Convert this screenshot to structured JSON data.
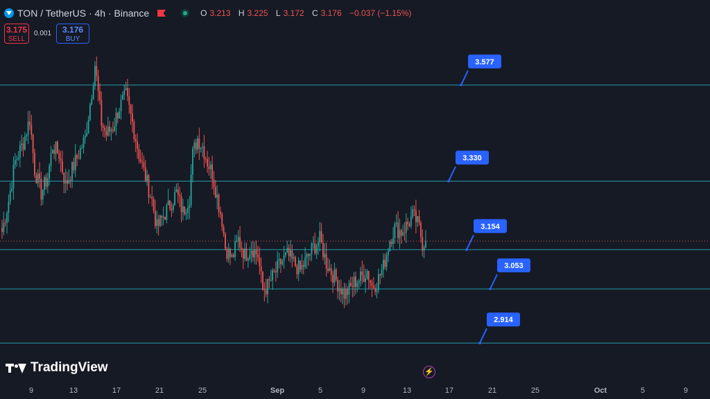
{
  "header": {
    "title": "TON / TetherUS · 4h · Binance",
    "open_key": "O",
    "open": "3.213",
    "high_key": "H",
    "high": "3.225",
    "low_key": "L",
    "low": "3.172",
    "close_key": "C",
    "close": "3.176",
    "change": "−0.037 (−1.15%)"
  },
  "trade": {
    "sell_price": "3.175",
    "sell_label": "SELL",
    "spread": "0.001",
    "buy_price": "3.176",
    "buy_label": "BUY"
  },
  "branding": {
    "logo_text": "TradingView"
  },
  "colors": {
    "background": "#161a25",
    "up": "#26a69a",
    "down": "#ef5350",
    "level_line": "#26c6da",
    "callout": "#2962ff",
    "price_line": "#ef5350"
  },
  "chart_data": {
    "type": "candlestick",
    "timeframe": "4h",
    "ylim": [
      2.82,
      3.76
    ],
    "x_tick_labels": [
      "9",
      "13",
      "17",
      "21",
      "25",
      "Sep",
      "5",
      "9",
      "13",
      "17",
      "21",
      "25",
      "Oct",
      "5",
      "9"
    ],
    "current_price": 3.176,
    "price_levels": [
      {
        "label": "3.577",
        "value": 3.577
      },
      {
        "label": "3.330",
        "value": 3.33
      },
      {
        "label": "3.154",
        "value": 3.154
      },
      {
        "label": "3.053",
        "value": 3.053
      },
      {
        "label": "2.914",
        "value": 2.914
      }
    ],
    "close_path": [
      [
        0,
        3.2
      ],
      [
        4,
        3.28
      ],
      [
        8,
        3.38
      ],
      [
        13,
        3.43
      ],
      [
        17,
        3.49
      ],
      [
        20,
        3.36
      ],
      [
        24,
        3.3
      ],
      [
        28,
        3.34
      ],
      [
        31,
        3.42
      ],
      [
        35,
        3.4
      ],
      [
        39,
        3.32
      ],
      [
        43,
        3.36
      ],
      [
        47,
        3.4
      ],
      [
        51,
        3.44
      ],
      [
        55,
        3.56
      ],
      [
        57,
        3.63
      ],
      [
        61,
        3.48
      ],
      [
        64,
        3.45
      ],
      [
        68,
        3.47
      ],
      [
        72,
        3.52
      ],
      [
        76,
        3.55
      ],
      [
        80,
        3.48
      ],
      [
        84,
        3.4
      ],
      [
        88,
        3.34
      ],
      [
        92,
        3.28
      ],
      [
        95,
        3.21
      ],
      [
        99,
        3.24
      ],
      [
        103,
        3.27
      ],
      [
        107,
        3.3
      ],
      [
        111,
        3.25
      ],
      [
        115,
        3.29
      ],
      [
        117,
        3.4
      ],
      [
        120,
        3.44
      ],
      [
        123,
        3.42
      ],
      [
        126,
        3.38
      ],
      [
        129,
        3.35
      ],
      [
        132,
        3.29
      ],
      [
        135,
        3.23
      ],
      [
        137,
        3.16
      ],
      [
        141,
        3.13
      ],
      [
        145,
        3.18
      ],
      [
        149,
        3.14
      ],
      [
        153,
        3.16
      ],
      [
        157,
        3.14
      ],
      [
        160,
        3.05
      ],
      [
        163,
        3.06
      ],
      [
        167,
        3.09
      ],
      [
        171,
        3.12
      ],
      [
        175,
        3.14
      ],
      [
        179,
        3.12
      ],
      [
        183,
        3.1
      ],
      [
        187,
        3.13
      ],
      [
        191,
        3.16
      ],
      [
        195,
        3.18
      ],
      [
        199,
        3.12
      ],
      [
        203,
        3.09
      ],
      [
        207,
        3.06
      ],
      [
        210,
        3.04
      ],
      [
        213,
        3.05
      ],
      [
        216,
        3.07
      ],
      [
        220,
        3.08
      ],
      [
        224,
        3.1
      ],
      [
        227,
        3.06
      ],
      [
        230,
        3.07
      ],
      [
        234,
        3.11
      ],
      [
        238,
        3.18
      ],
      [
        241,
        3.21
      ],
      [
        245,
        3.2
      ],
      [
        249,
        3.22
      ],
      [
        252,
        3.24
      ],
      [
        254,
        3.23
      ],
      [
        256,
        3.21
      ],
      [
        258,
        3.17
      ],
      [
        260,
        3.176
      ]
    ]
  }
}
